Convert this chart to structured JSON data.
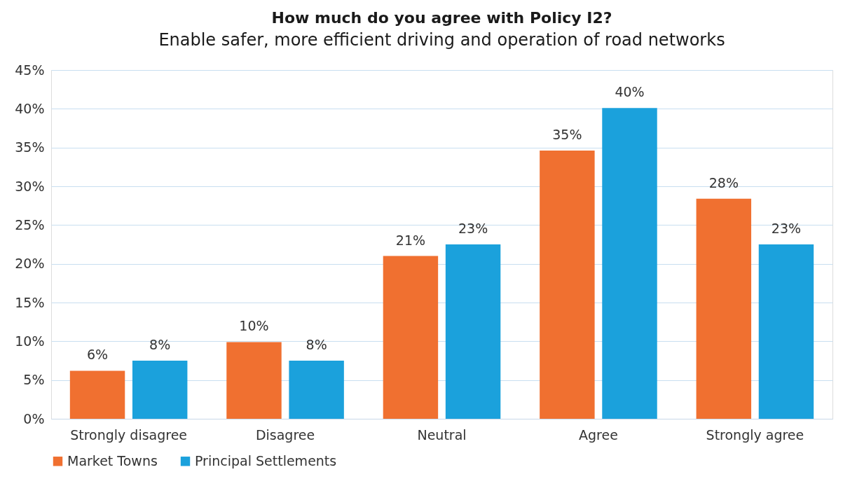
{
  "chart_data": {
    "type": "bar",
    "title": "How much do you agree with Policy I2?",
    "subtitle": "Enable safer, more efficient driving and operation of road networks",
    "categories": [
      "Strongly disagree",
      "Disagree",
      "Neutral",
      "Agree",
      "Strongly agree"
    ],
    "series": [
      {
        "name": "Market Towns",
        "color": "#f07030",
        "values": [
          6.2,
          9.9,
          21.0,
          34.6,
          28.4
        ],
        "value_labels": [
          "6%",
          "10%",
          "21%",
          "35%",
          "28%"
        ]
      },
      {
        "name": "Principal Settlements",
        "color": "#1ba1dc",
        "values": [
          7.5,
          7.5,
          22.5,
          40.1,
          22.5
        ],
        "value_labels": [
          "8%",
          "8%",
          "23%",
          "40%",
          "23%"
        ]
      }
    ],
    "ylim": [
      0,
      45
    ],
    "yticks": [
      {
        "value": 0,
        "label": "0%"
      },
      {
        "value": 5,
        "label": "5%"
      },
      {
        "value": 10,
        "label": "10%"
      },
      {
        "value": 15,
        "label": "15%"
      },
      {
        "value": 20,
        "label": "20%"
      },
      {
        "value": 25,
        "label": "25%"
      },
      {
        "value": 30,
        "label": "30%"
      },
      {
        "value": 35,
        "label": "35%"
      },
      {
        "value": 40,
        "label": "40%"
      },
      {
        "value": 45,
        "label": "45%"
      }
    ],
    "grid": "y",
    "legend": "bottom"
  }
}
